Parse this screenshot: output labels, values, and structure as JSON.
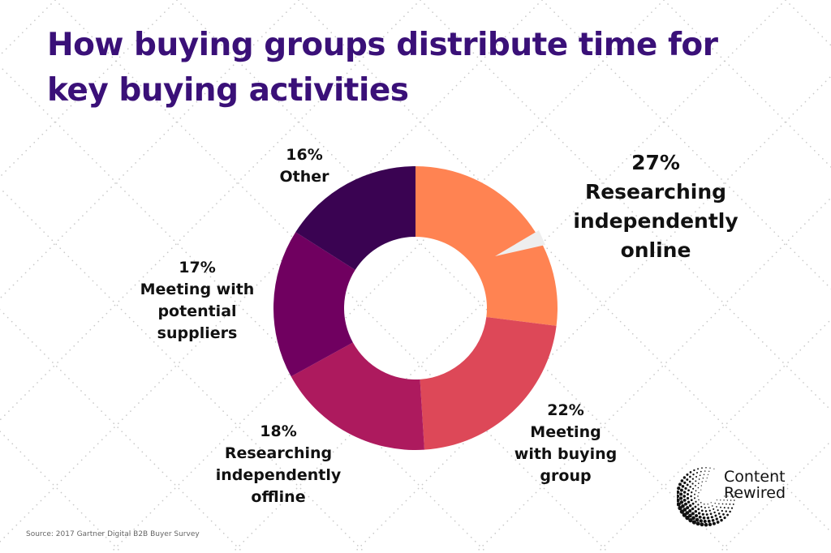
{
  "chart_data": {
    "type": "pie",
    "title": "How buying groups distribute time for key buying activities",
    "slices": [
      {
        "value": 27,
        "percent_label": "27%",
        "label": "Researching independently online",
        "color": "#ff8352"
      },
      {
        "value": 22,
        "percent_label": "22%",
        "label": "Meeting with buying group",
        "color": "#dd4858"
      },
      {
        "value": 18,
        "percent_label": "18%",
        "label": "Researching independently offline",
        "color": "#ad1a5e"
      },
      {
        "value": 17,
        "percent_label": "17%",
        "label": "Meeting with potential suppliers",
        "color": "#700060"
      },
      {
        "value": 16,
        "percent_label": "16%",
        "label": "Other",
        "color": "#3a0352"
      }
    ]
  },
  "labels": {
    "online": [
      "Researching",
      "independently",
      "online"
    ],
    "group": [
      "Meeting",
      "with buying",
      "group"
    ],
    "offline": [
      "Researching",
      "independently",
      "offline"
    ],
    "suppliers": [
      "Meeting with",
      "potential",
      "suppliers"
    ],
    "other": [
      "Other"
    ]
  },
  "source": "Source: 2017 Gartner Digital B2B Buyer Survey",
  "brand": {
    "line1": "Content",
    "line2": "Rewired"
  },
  "colors": {
    "title": "#3a1078",
    "pattern": "#cfcfcf"
  }
}
